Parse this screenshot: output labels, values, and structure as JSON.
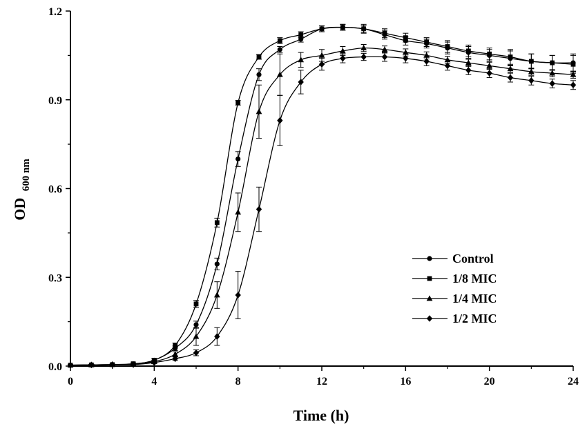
{
  "chart_data": {
    "type": "line",
    "xlabel": "Time (h)",
    "ylabel": "OD",
    "ylabel_sub": "600 nm",
    "xlim": [
      0,
      24
    ],
    "ylim": [
      0,
      1.2
    ],
    "xticks": [
      "0",
      "4",
      "8",
      "12",
      "16",
      "20",
      "24"
    ],
    "yticks": [
      "0.0",
      "0.3",
      "0.6",
      "0.9",
      "1.2"
    ],
    "grid": false,
    "legend_position": "lower-right",
    "x": [
      0,
      1,
      2,
      3,
      4,
      5,
      6,
      7,
      8,
      9,
      10,
      11,
      12,
      13,
      14,
      15,
      16,
      17,
      18,
      19,
      20,
      21,
      22,
      23,
      24
    ],
    "series": [
      {
        "name": "Control",
        "marker": "circle",
        "values": [
          0.003,
          0.004,
          0.005,
          0.007,
          0.02,
          0.06,
          0.14,
          0.345,
          0.7,
          0.985,
          1.07,
          1.105,
          1.14,
          1.145,
          1.14,
          1.12,
          1.1,
          1.09,
          1.075,
          1.06,
          1.05,
          1.04,
          1.03,
          1.025,
          1.025
        ],
        "errors": [
          0.002,
          0.002,
          0.002,
          0.003,
          0.005,
          0.008,
          0.012,
          0.02,
          0.025,
          0.02,
          0.01,
          0.01,
          0.01,
          0.01,
          0.015,
          0.015,
          0.015,
          0.015,
          0.02,
          0.02,
          0.02,
          0.025,
          0.025,
          0.025,
          0.03
        ]
      },
      {
        "name": "1/8 MIC",
        "marker": "square",
        "values": [
          0.003,
          0.004,
          0.005,
          0.008,
          0.02,
          0.07,
          0.21,
          0.485,
          0.89,
          1.045,
          1.1,
          1.12,
          1.14,
          1.145,
          1.14,
          1.125,
          1.11,
          1.095,
          1.08,
          1.065,
          1.055,
          1.045,
          1.03,
          1.025,
          1.02
        ],
        "errors": [
          0.002,
          0.002,
          0.002,
          0.003,
          0.005,
          0.008,
          0.012,
          0.015,
          0.008,
          0.008,
          0.01,
          0.01,
          0.01,
          0.01,
          0.012,
          0.015,
          0.015,
          0.015,
          0.02,
          0.02,
          0.02,
          0.025,
          0.025,
          0.025,
          0.03
        ]
      },
      {
        "name": "1/4 MIC",
        "marker": "triangle",
        "values": [
          0.003,
          0.004,
          0.005,
          0.006,
          0.015,
          0.04,
          0.1,
          0.24,
          0.52,
          0.86,
          0.985,
          1.035,
          1.05,
          1.065,
          1.075,
          1.07,
          1.06,
          1.05,
          1.035,
          1.025,
          1.015,
          1.005,
          0.995,
          0.99,
          0.985
        ],
        "errors": [
          0.002,
          0.002,
          0.002,
          0.003,
          0.005,
          0.008,
          0.03,
          0.045,
          0.065,
          0.09,
          0.07,
          0.025,
          0.02,
          0.015,
          0.012,
          0.012,
          0.012,
          0.012,
          0.012,
          0.012,
          0.012,
          0.012,
          0.012,
          0.012,
          0.012
        ]
      },
      {
        "name": "1/2 MIC",
        "marker": "diamond",
        "values": [
          0.003,
          0.004,
          0.005,
          0.005,
          0.012,
          0.025,
          0.045,
          0.1,
          0.24,
          0.53,
          0.83,
          0.96,
          1.02,
          1.04,
          1.045,
          1.045,
          1.04,
          1.03,
          1.015,
          1.0,
          0.99,
          0.975,
          0.965,
          0.955,
          0.95
        ],
        "errors": [
          0.002,
          0.002,
          0.002,
          0.003,
          0.004,
          0.006,
          0.01,
          0.03,
          0.08,
          0.075,
          0.085,
          0.04,
          0.02,
          0.015,
          0.012,
          0.015,
          0.015,
          0.015,
          0.015,
          0.015,
          0.015,
          0.015,
          0.015,
          0.015,
          0.015
        ]
      }
    ]
  }
}
